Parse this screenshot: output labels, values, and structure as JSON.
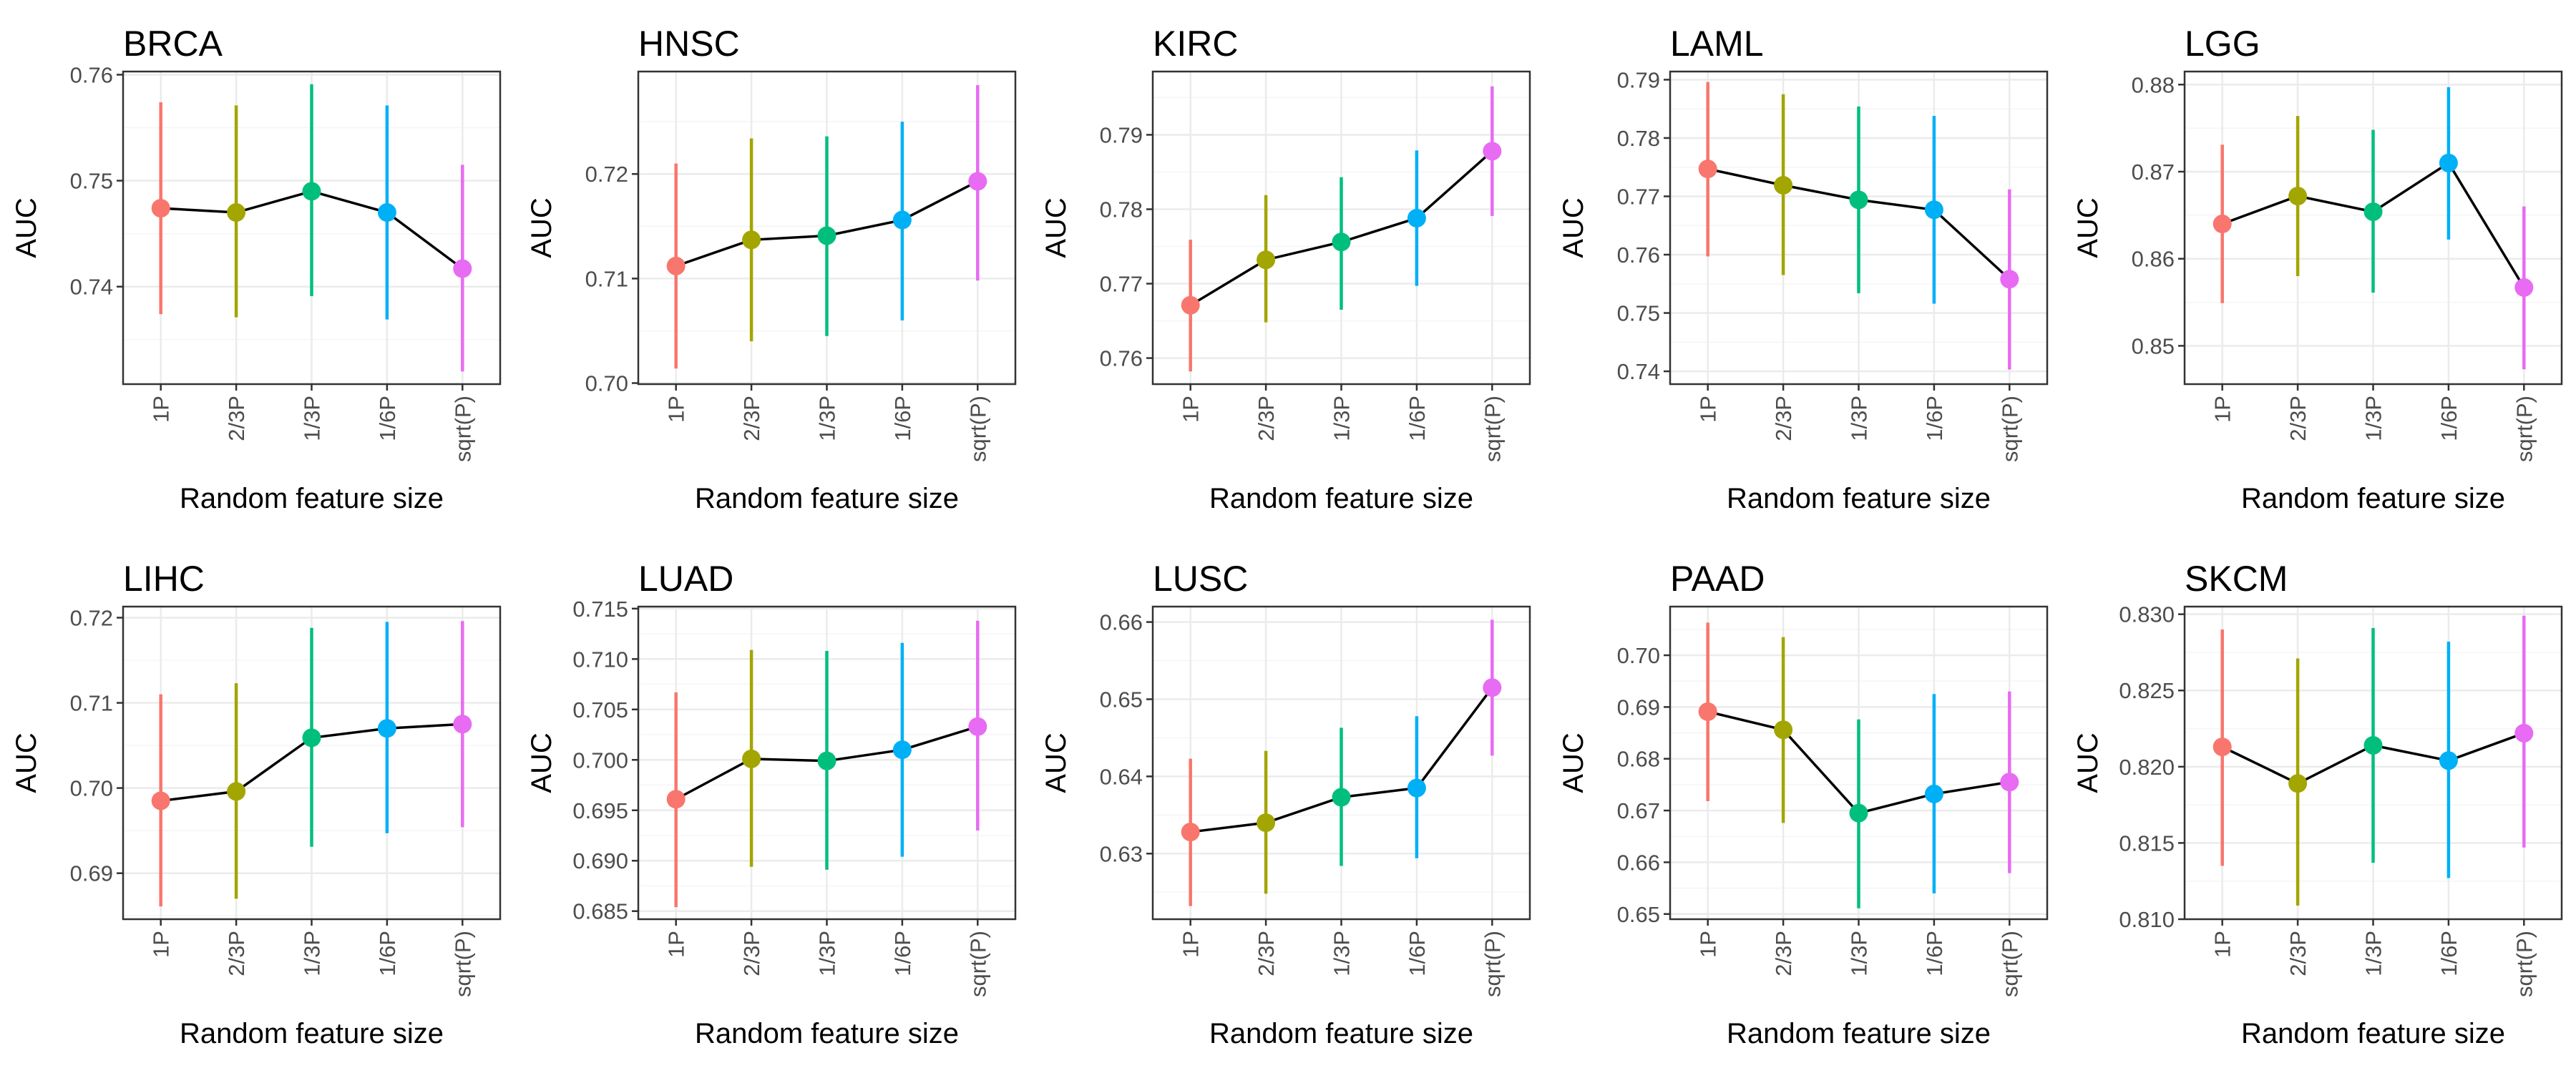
{
  "chart_data": [
    {
      "type": "line",
      "title": "BRCA",
      "xlabel": "Random feature size",
      "ylabel": "AUC",
      "categories": [
        "1P",
        "2/3P",
        "1/3P",
        "1/6P",
        "sqrt(P)"
      ],
      "values": [
        0.7474,
        0.747,
        0.749,
        0.747,
        0.7417
      ],
      "lower": [
        0.7374,
        0.7371,
        0.7391,
        0.7369,
        0.732
      ],
      "upper": [
        0.7574,
        0.7571,
        0.7591,
        0.7571,
        0.7515
      ],
      "yticks": [
        0.74,
        0.75,
        0.76
      ],
      "ylim": [
        0.7308,
        0.7603
      ],
      "grid": true
    },
    {
      "type": "line",
      "title": "HNSC",
      "xlabel": "Random feature size",
      "ylabel": "AUC",
      "categories": [
        "1P",
        "2/3P",
        "1/3P",
        "1/6P",
        "sqrt(P)"
      ],
      "values": [
        0.7112,
        0.7137,
        0.7141,
        0.7156,
        0.7193
      ],
      "lower": [
        0.7014,
        0.704,
        0.7045,
        0.706,
        0.7098
      ],
      "upper": [
        0.721,
        0.7234,
        0.7236,
        0.725,
        0.7285
      ],
      "yticks": [
        0.7,
        0.71,
        0.72
      ],
      "ylim": [
        0.6999,
        0.7298
      ],
      "grid": true
    },
    {
      "type": "line",
      "title": "KIRC",
      "xlabel": "Random feature size",
      "ylabel": "AUC",
      "categories": [
        "1P",
        "2/3P",
        "1/3P",
        "1/6P",
        "sqrt(P)"
      ],
      "values": [
        0.7671,
        0.7732,
        0.7756,
        0.7788,
        0.7878
      ],
      "lower": [
        0.7582,
        0.7648,
        0.7665,
        0.7697,
        0.7791
      ],
      "upper": [
        0.7759,
        0.7819,
        0.7843,
        0.7879,
        0.7965
      ],
      "yticks": [
        0.76,
        0.77,
        0.78,
        0.79
      ],
      "ylim": [
        0.7565,
        0.7985
      ],
      "grid": true
    },
    {
      "type": "line",
      "title": "LAML",
      "xlabel": "Random feature size",
      "ylabel": "AUC",
      "categories": [
        "1P",
        "2/3P",
        "1/3P",
        "1/6P",
        "sqrt(P)"
      ],
      "values": [
        0.7747,
        0.7719,
        0.7694,
        0.7677,
        0.7558
      ],
      "lower": [
        0.7597,
        0.7565,
        0.7534,
        0.7516,
        0.7403
      ],
      "upper": [
        0.7896,
        0.7875,
        0.7854,
        0.7838,
        0.7712
      ],
      "yticks": [
        0.74,
        0.75,
        0.76,
        0.77,
        0.78,
        0.79
      ],
      "ylim": [
        0.7378,
        0.7914
      ],
      "grid": true
    },
    {
      "type": "line",
      "title": "LGG",
      "xlabel": "Random feature size",
      "ylabel": "AUC",
      "categories": [
        "1P",
        "2/3P",
        "1/3P",
        "1/6P",
        "sqrt(P)"
      ],
      "values": [
        0.864,
        0.8672,
        0.8654,
        0.871,
        0.8567
      ],
      "lower": [
        0.8549,
        0.858,
        0.8561,
        0.8622,
        0.8473
      ],
      "upper": [
        0.8731,
        0.8764,
        0.8748,
        0.8797,
        0.866
      ],
      "yticks": [
        0.85,
        0.86,
        0.87,
        0.88
      ],
      "ylim": [
        0.8456,
        0.8815
      ],
      "grid": true
    },
    {
      "type": "line",
      "title": "LIHC",
      "xlabel": "Random feature size",
      "ylabel": "AUC",
      "categories": [
        "1P",
        "2/3P",
        "1/3P",
        "1/6P",
        "sqrt(P)"
      ],
      "values": [
        0.6985,
        0.6996,
        0.7059,
        0.707,
        0.7075
      ],
      "lower": [
        0.6861,
        0.687,
        0.6931,
        0.6947,
        0.6954
      ],
      "upper": [
        0.711,
        0.7123,
        0.7188,
        0.7195,
        0.7196
      ],
      "yticks": [
        0.69,
        0.7,
        0.71,
        0.72
      ],
      "ylim": [
        0.6846,
        0.7213
      ],
      "grid": true
    },
    {
      "type": "line",
      "title": "LUAD",
      "xlabel": "Random feature size",
      "ylabel": "AUC",
      "categories": [
        "1P",
        "2/3P",
        "1/3P",
        "1/6P",
        "sqrt(P)"
      ],
      "values": [
        0.6961,
        0.7001,
        0.6999,
        0.701,
        0.7033
      ],
      "lower": [
        0.6854,
        0.6894,
        0.6891,
        0.6904,
        0.693
      ],
      "upper": [
        0.7067,
        0.7109,
        0.7108,
        0.7116,
        0.7138
      ],
      "yticks": [
        0.685,
        0.69,
        0.695,
        0.7,
        0.705,
        0.71,
        0.715
      ],
      "ylim": [
        0.6842,
        0.7152
      ],
      "grid": true
    },
    {
      "type": "line",
      "title": "LUSC",
      "xlabel": "Random feature size",
      "ylabel": "AUC",
      "categories": [
        "1P",
        "2/3P",
        "1/3P",
        "1/6P",
        "sqrt(P)"
      ],
      "values": [
        0.6328,
        0.634,
        0.6373,
        0.6385,
        0.6515
      ],
      "lower": [
        0.6232,
        0.6248,
        0.6284,
        0.6294,
        0.6427
      ],
      "upper": [
        0.6423,
        0.6433,
        0.6463,
        0.6478,
        0.6603
      ],
      "yticks": [
        0.63,
        0.64,
        0.65,
        0.66
      ],
      "ylim": [
        0.6215,
        0.662
      ],
      "grid": true
    },
    {
      "type": "line",
      "title": "PAAD",
      "xlabel": "Random feature size",
      "ylabel": "AUC",
      "categories": [
        "1P",
        "2/3P",
        "1/3P",
        "1/6P",
        "sqrt(P)"
      ],
      "values": [
        0.6891,
        0.6856,
        0.6695,
        0.6732,
        0.6755
      ],
      "lower": [
        0.6718,
        0.6676,
        0.6511,
        0.654,
        0.6579
      ],
      "upper": [
        0.7063,
        0.7035,
        0.6876,
        0.6925,
        0.693
      ],
      "yticks": [
        0.65,
        0.66,
        0.67,
        0.68,
        0.69,
        0.7
      ],
      "ylim": [
        0.649,
        0.7094
      ],
      "grid": true
    },
    {
      "type": "line",
      "title": "SKCM",
      "xlabel": "Random feature size",
      "ylabel": "AUC",
      "categories": [
        "1P",
        "2/3P",
        "1/3P",
        "1/6P",
        "sqrt(P)"
      ],
      "values": [
        0.8213,
        0.8189,
        0.8214,
        0.8204,
        0.8222
      ],
      "lower": [
        0.8135,
        0.8109,
        0.8137,
        0.8127,
        0.8147
      ],
      "upper": [
        0.829,
        0.8271,
        0.8291,
        0.8282,
        0.8299
      ],
      "yticks": [
        0.81,
        0.815,
        0.82,
        0.825,
        0.83
      ],
      "ylim": [
        0.81,
        0.8305
      ],
      "grid": true
    }
  ],
  "colors": {
    "categories": [
      "#F8766D",
      "#A3A500",
      "#00BF7D",
      "#00B0F6",
      "#E76BF3"
    ],
    "line": "#000000",
    "grid_major": "#EBEBEB",
    "grid_minor": "#F5F5F5",
    "panel_border": "#333333",
    "tick_text": "#4D4D4D"
  }
}
